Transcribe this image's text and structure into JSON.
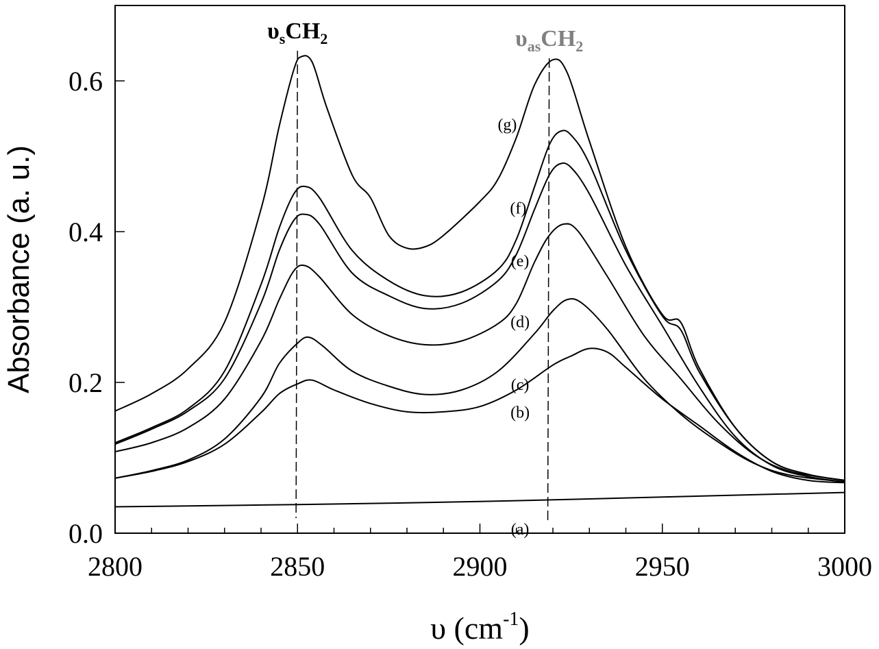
{
  "chart_data": {
    "type": "line",
    "x_unit": "cm-1",
    "xlabel": {
      "symbol": "υ",
      "open": " (cm",
      "sup": "-1",
      "close": ")"
    },
    "ylabel": "Absorbance (a. u.)",
    "xlim": [
      2800,
      3000
    ],
    "ylim": [
      0.0,
      0.7
    ],
    "x_ticks": [
      2800,
      2850,
      2900,
      2950,
      3000
    ],
    "x_tick_labels": [
      "2800",
      "2850",
      "2900",
      "2950",
      "3000"
    ],
    "y_ticks": [
      0.0,
      0.2,
      0.4,
      0.6
    ],
    "y_tick_labels": [
      "0.0",
      "0.2",
      "0.4",
      "0.6"
    ],
    "x_minor_step": 10,
    "grid": false,
    "series_color": "#000000",
    "reference_lines": [
      {
        "x_top": 2850.0,
        "x_bottom": 2849.6,
        "y_top": 0.64,
        "y_bottom": 0.02,
        "label_main": "υ",
        "label_sub": "s",
        "label_mol": "CH",
        "label_mol_sub": "2",
        "color": "#000000"
      },
      {
        "x_top": 2919.0,
        "x_bottom": 2918.6,
        "y_top": 0.63,
        "y_bottom": 0.016,
        "label_main": "υ",
        "label_sub": "as",
        "label_mol": "CH",
        "label_mol_sub": "2",
        "color": "#808080"
      }
    ],
    "series": [
      {
        "name": "(a)",
        "label_x": 2911,
        "label_y": -0.002,
        "points": [
          [
            2800,
            0.035
          ],
          [
            2850,
            0.038
          ],
          [
            2900,
            0.042
          ],
          [
            2950,
            0.048
          ],
          [
            3000,
            0.054
          ]
        ]
      },
      {
        "name": "(b)",
        "label_x": 2911,
        "label_y": 0.153,
        "points": [
          [
            2800,
            0.073
          ],
          [
            2810,
            0.082
          ],
          [
            2820,
            0.095
          ],
          [
            2830,
            0.118
          ],
          [
            2840,
            0.16
          ],
          [
            2845,
            0.185
          ],
          [
            2850,
            0.198
          ],
          [
            2854,
            0.203
          ],
          [
            2860,
            0.19
          ],
          [
            2870,
            0.172
          ],
          [
            2880,
            0.161
          ],
          [
            2890,
            0.161
          ],
          [
            2900,
            0.168
          ],
          [
            2910,
            0.19
          ],
          [
            2920,
            0.223
          ],
          [
            2925,
            0.235
          ],
          [
            2930,
            0.245
          ],
          [
            2935,
            0.24
          ],
          [
            2940,
            0.22
          ],
          [
            2950,
            0.178
          ],
          [
            2960,
            0.143
          ],
          [
            2970,
            0.108
          ],
          [
            2980,
            0.082
          ],
          [
            2990,
            0.07
          ],
          [
            3000,
            0.067
          ]
        ]
      },
      {
        "name": "(c)",
        "label_x": 2911,
        "label_y": 0.19,
        "points": [
          [
            2800,
            0.073
          ],
          [
            2810,
            0.083
          ],
          [
            2820,
            0.097
          ],
          [
            2830,
            0.125
          ],
          [
            2840,
            0.18
          ],
          [
            2845,
            0.225
          ],
          [
            2850,
            0.252
          ],
          [
            2853,
            0.26
          ],
          [
            2857,
            0.248
          ],
          [
            2865,
            0.215
          ],
          [
            2875,
            0.195
          ],
          [
            2885,
            0.184
          ],
          [
            2895,
            0.19
          ],
          [
            2905,
            0.215
          ],
          [
            2915,
            0.265
          ],
          [
            2920,
            0.295
          ],
          [
            2924,
            0.31
          ],
          [
            2928,
            0.305
          ],
          [
            2935,
            0.27
          ],
          [
            2945,
            0.205
          ],
          [
            2955,
            0.158
          ],
          [
            2965,
            0.122
          ],
          [
            2975,
            0.093
          ],
          [
            2985,
            0.077
          ],
          [
            3000,
            0.068
          ]
        ]
      },
      {
        "name": "(d)",
        "label_x": 2911,
        "label_y": 0.273,
        "points": [
          [
            2800,
            0.108
          ],
          [
            2810,
            0.12
          ],
          [
            2820,
            0.14
          ],
          [
            2830,
            0.178
          ],
          [
            2840,
            0.255
          ],
          [
            2845,
            0.31
          ],
          [
            2849,
            0.348
          ],
          [
            2852,
            0.355
          ],
          [
            2856,
            0.34
          ],
          [
            2865,
            0.29
          ],
          [
            2875,
            0.262
          ],
          [
            2885,
            0.25
          ],
          [
            2895,
            0.255
          ],
          [
            2905,
            0.278
          ],
          [
            2910,
            0.305
          ],
          [
            2915,
            0.36
          ],
          [
            2919,
            0.395
          ],
          [
            2923,
            0.41
          ],
          [
            2927,
            0.4
          ],
          [
            2935,
            0.34
          ],
          [
            2945,
            0.262
          ],
          [
            2955,
            0.205
          ],
          [
            2965,
            0.148
          ],
          [
            2975,
            0.105
          ],
          [
            2985,
            0.082
          ],
          [
            3000,
            0.07
          ]
        ]
      },
      {
        "name": "(e)",
        "label_x": 2911,
        "label_y": 0.354,
        "points": [
          [
            2800,
            0.118
          ],
          [
            2810,
            0.138
          ],
          [
            2820,
            0.162
          ],
          [
            2830,
            0.205
          ],
          [
            2840,
            0.305
          ],
          [
            2845,
            0.375
          ],
          [
            2849,
            0.415
          ],
          [
            2852,
            0.423
          ],
          [
            2856,
            0.41
          ],
          [
            2865,
            0.345
          ],
          [
            2875,
            0.315
          ],
          [
            2885,
            0.298
          ],
          [
            2895,
            0.305
          ],
          [
            2905,
            0.335
          ],
          [
            2910,
            0.37
          ],
          [
            2915,
            0.43
          ],
          [
            2919,
            0.475
          ],
          [
            2922,
            0.49
          ],
          [
            2925,
            0.485
          ],
          [
            2930,
            0.45
          ],
          [
            2940,
            0.355
          ],
          [
            2950,
            0.275
          ],
          [
            2960,
            0.195
          ],
          [
            2970,
            0.128
          ],
          [
            2980,
            0.09
          ],
          [
            2990,
            0.075
          ],
          [
            3000,
            0.068
          ]
        ]
      },
      {
        "name": "(f)",
        "label_x": 2910.5,
        "label_y": 0.424,
        "points": [
          [
            2800,
            0.12
          ],
          [
            2810,
            0.14
          ],
          [
            2820,
            0.165
          ],
          [
            2830,
            0.215
          ],
          [
            2840,
            0.33
          ],
          [
            2845,
            0.405
          ],
          [
            2849,
            0.45
          ],
          [
            2852,
            0.46
          ],
          [
            2856,
            0.445
          ],
          [
            2865,
            0.375
          ],
          [
            2875,
            0.335
          ],
          [
            2885,
            0.315
          ],
          [
            2895,
            0.32
          ],
          [
            2905,
            0.35
          ],
          [
            2910,
            0.39
          ],
          [
            2915,
            0.46
          ],
          [
            2919,
            0.515
          ],
          [
            2922,
            0.533
          ],
          [
            2925,
            0.528
          ],
          [
            2930,
            0.49
          ],
          [
            2940,
            0.375
          ],
          [
            2950,
            0.288
          ],
          [
            2955,
            0.27
          ],
          [
            2960,
            0.215
          ],
          [
            2970,
            0.14
          ],
          [
            2980,
            0.095
          ],
          [
            2990,
            0.078
          ],
          [
            3000,
            0.07
          ]
        ]
      },
      {
        "name": "(g)",
        "label_x": 2907.5,
        "label_y": 0.535,
        "points": [
          [
            2800,
            0.162
          ],
          [
            2810,
            0.185
          ],
          [
            2820,
            0.218
          ],
          [
            2830,
            0.28
          ],
          [
            2840,
            0.43
          ],
          [
            2845,
            0.54
          ],
          [
            2849,
            0.615
          ],
          [
            2851,
            0.632
          ],
          [
            2854,
            0.625
          ],
          [
            2858,
            0.565
          ],
          [
            2865,
            0.475
          ],
          [
            2870,
            0.445
          ],
          [
            2875,
            0.395
          ],
          [
            2880,
            0.378
          ],
          [
            2885,
            0.38
          ],
          [
            2890,
            0.395
          ],
          [
            2900,
            0.44
          ],
          [
            2905,
            0.47
          ],
          [
            2910,
            0.525
          ],
          [
            2915,
            0.595
          ],
          [
            2920,
            0.628
          ],
          [
            2924,
            0.61
          ],
          [
            2930,
            0.52
          ],
          [
            2940,
            0.38
          ],
          [
            2950,
            0.29
          ],
          [
            2955,
            0.28
          ],
          [
            2960,
            0.22
          ],
          [
            2970,
            0.14
          ],
          [
            2980,
            0.095
          ],
          [
            2990,
            0.078
          ],
          [
            3000,
            0.07
          ]
        ]
      }
    ]
  }
}
